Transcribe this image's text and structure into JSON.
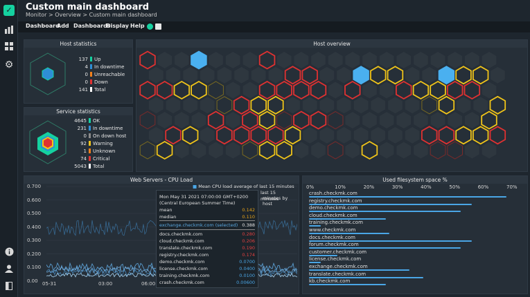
{
  "header": {
    "title": "Custom main dashboard",
    "breadcrumb": "Monitor > Overview > Custom main dashboard"
  },
  "menu": [
    "Dashboard",
    "Add",
    "Dashboards",
    "Display",
    "Help"
  ],
  "sidebar_icons": [
    "logo-icon",
    "bar-chart-icon",
    "grid-icon",
    "gear-icon",
    "info-icon",
    "user-icon",
    "panel-toggle-icon"
  ],
  "host_stats": {
    "title": "Host statistics",
    "rows": [
      {
        "num": "137",
        "label": "Up",
        "color": "#15d1a0"
      },
      {
        "num": "4",
        "label": "In downtime",
        "color": "#2e8ed6"
      },
      {
        "num": "0",
        "label": "Unreachable",
        "color": "#f0801c"
      },
      {
        "num": "0",
        "label": "Down",
        "color": "#e03131"
      },
      {
        "num": "141",
        "label": "Total",
        "color": "#ffffff"
      }
    ]
  },
  "service_stats": {
    "title": "Service statistics",
    "rows": [
      {
        "num": "4645",
        "label": "OK",
        "color": "#15d1a0"
      },
      {
        "num": "231",
        "label": "In downtime",
        "color": "#2e8ed6"
      },
      {
        "num": "0",
        "label": "On down host",
        "color": "#8a8a8a"
      },
      {
        "num": "92",
        "label": "Warning",
        "color": "#f0c419"
      },
      {
        "num": "1",
        "label": "Unknown",
        "color": "#f0801c"
      },
      {
        "num": "74",
        "label": "Critical",
        "color": "#e03131"
      },
      {
        "num": "5043",
        "label": "Total",
        "color": "#ffffff"
      }
    ]
  },
  "host_overview": {
    "title": "Host overview"
  },
  "cpu": {
    "title": "Web Servers - CPU Load",
    "y_ticks": [
      "0.700",
      "0.600",
      "0.500",
      "0.400",
      "0.300",
      "0.200",
      "0.100",
      "0.00"
    ],
    "x_ticks": [
      "05-31",
      "03:00",
      "06:00"
    ],
    "legend_items": [
      "Mean CPU load average of last 15 minutes",
      "last 15",
      "minutes",
      "minutes by host"
    ],
    "tooltip": {
      "date": "Mon May 31 2021 07:00:00 GMT+0200",
      "tz": "(Central European Summer Time)",
      "rows": [
        {
          "k": "mean",
          "v": "0.142",
          "color": "#e6a217"
        },
        {
          "k": "median",
          "v": "0.110",
          "color": "#e6a217"
        },
        {
          "k": "exchange.checkmk.com (selected)",
          "v": "0.388",
          "color": "#e4e4e4",
          "kcolor": "#5aa8e0"
        },
        {
          "k": "docs.checkmk.com",
          "v": "0.280",
          "color": "#e04040"
        },
        {
          "k": "cloud.checkmk.com",
          "v": "0.206",
          "color": "#e04040"
        },
        {
          "k": "translate.checkmk.com",
          "v": "0.190",
          "color": "#e04040"
        },
        {
          "k": "registry.checkmk.com",
          "v": "0.174",
          "color": "#e04040"
        },
        {
          "k": "demo.checkmk.com",
          "v": "0.0700",
          "color": "#4aa6e6"
        },
        {
          "k": "license.checkmk.com",
          "v": "0.0400",
          "color": "#4aa6e6"
        },
        {
          "k": "training.checkmk.com",
          "v": "0.0100",
          "color": "#4aa6e6"
        },
        {
          "k": "crash.checkmk.com",
          "v": "0.00600",
          "color": "#4aa6e6"
        }
      ]
    }
  },
  "fs": {
    "title": "Used filesystem space %",
    "ticks": [
      "0%",
      "10%",
      "20%",
      "30%",
      "40%",
      "50%",
      "60%",
      "70%"
    ],
    "hosts": [
      {
        "name": "crash.checkmk.com",
        "pct": 69
      },
      {
        "name": "registry.checkmk.com",
        "pct": 57
      },
      {
        "name": "demo.checkmk.com",
        "pct": 53
      },
      {
        "name": "cloud.checkmk.com",
        "pct": 27
      },
      {
        "name": "training.checkmk.com",
        "pct": 4
      },
      {
        "name": "www.checkmk.com",
        "pct": 28
      },
      {
        "name": "docs.checkmk.com",
        "pct": 57
      },
      {
        "name": "forum.checkmk.com",
        "pct": 53
      },
      {
        "name": "customer.checkmk.com",
        "pct": 10
      },
      {
        "name": "license.checkmk.com",
        "pct": 4
      },
      {
        "name": "exchange.checkmk.com",
        "pct": 35
      },
      {
        "name": "translate.checkmk.com",
        "pct": 40
      },
      {
        "name": "kb.checkmk.com",
        "pct": 27
      }
    ]
  }
}
